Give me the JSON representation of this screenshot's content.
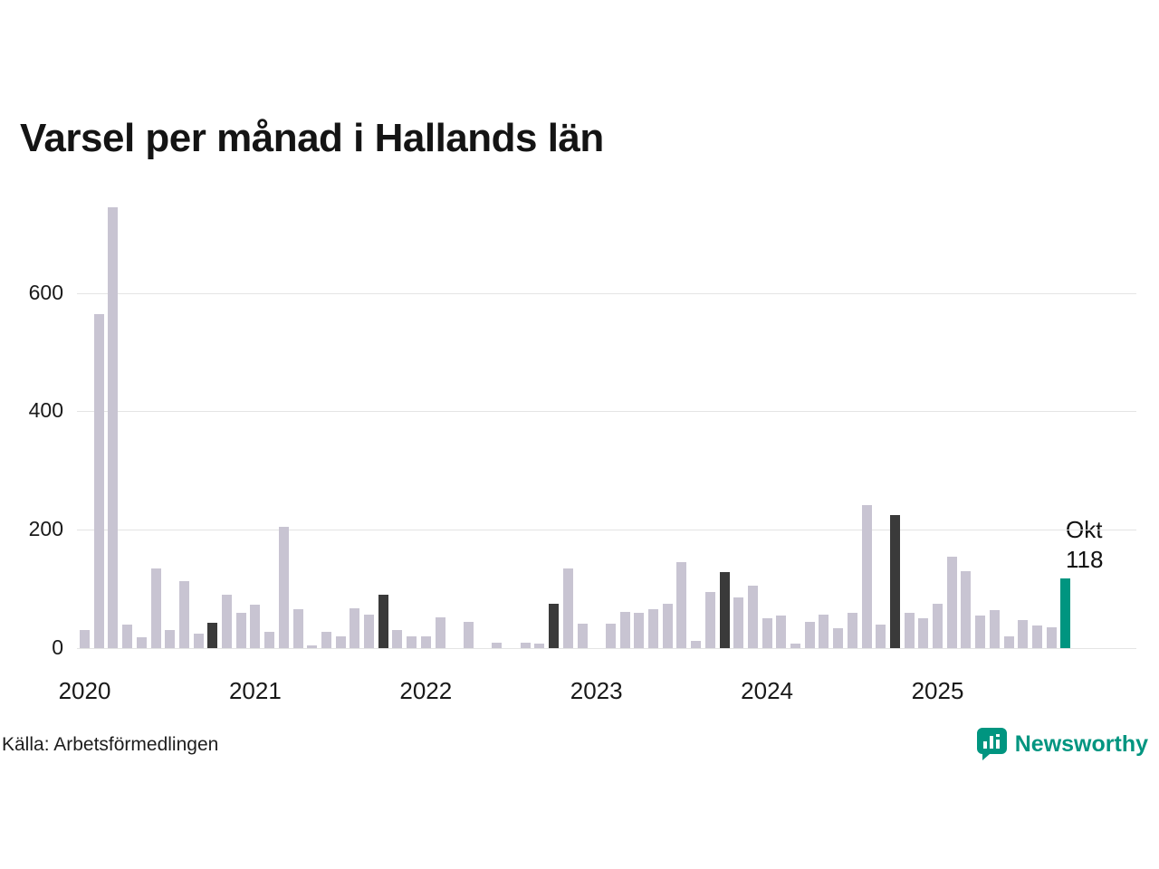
{
  "title": "Varsel per månad i Hallands län",
  "source": "Källa: Arbetsförmedlingen",
  "brand": {
    "name": "Newsworthy"
  },
  "colors": {
    "normal": "#c8c4d2",
    "dark": "#3a3a3a",
    "highlight": "#009580",
    "grid": "#e4e4e4",
    "text": "#191919",
    "brand": "#009580"
  },
  "chart_data": {
    "type": "bar",
    "title": "Varsel per månad i Hallands län",
    "xlabel": "",
    "ylabel": "",
    "ylim": [
      0,
      760
    ],
    "yticks": [
      0,
      200,
      400,
      600
    ],
    "grid": true,
    "year_labels": [
      "2020",
      "2021",
      "2022",
      "2023",
      "2024",
      "2025"
    ],
    "highlight_note": {
      "label": "Okt",
      "value": 118
    },
    "points": [
      {
        "month": "2020-01",
        "value": 30,
        "type": "normal"
      },
      {
        "month": "2020-02",
        "value": 565,
        "type": "normal"
      },
      {
        "month": "2020-03",
        "value": 745,
        "type": "normal"
      },
      {
        "month": "2020-04",
        "value": 40,
        "type": "normal"
      },
      {
        "month": "2020-05",
        "value": 18,
        "type": "normal"
      },
      {
        "month": "2020-06",
        "value": 135,
        "type": "normal"
      },
      {
        "month": "2020-07",
        "value": 30,
        "type": "normal"
      },
      {
        "month": "2020-08",
        "value": 113,
        "type": "normal"
      },
      {
        "month": "2020-09",
        "value": 25,
        "type": "normal"
      },
      {
        "month": "2020-10",
        "value": 43,
        "type": "dark"
      },
      {
        "month": "2020-11",
        "value": 90,
        "type": "normal"
      },
      {
        "month": "2020-12",
        "value": 60,
        "type": "normal"
      },
      {
        "month": "2021-01",
        "value": 73,
        "type": "normal"
      },
      {
        "month": "2021-02",
        "value": 28,
        "type": "normal"
      },
      {
        "month": "2021-03",
        "value": 205,
        "type": "normal"
      },
      {
        "month": "2021-04",
        "value": 66,
        "type": "normal"
      },
      {
        "month": "2021-05",
        "value": 5,
        "type": "normal"
      },
      {
        "month": "2021-06",
        "value": 27,
        "type": "normal"
      },
      {
        "month": "2021-07",
        "value": 20,
        "type": "normal"
      },
      {
        "month": "2021-08",
        "value": 67,
        "type": "normal"
      },
      {
        "month": "2021-09",
        "value": 57,
        "type": "normal"
      },
      {
        "month": "2021-10",
        "value": 90,
        "type": "dark"
      },
      {
        "month": "2021-11",
        "value": 31,
        "type": "normal"
      },
      {
        "month": "2021-12",
        "value": 20,
        "type": "normal"
      },
      {
        "month": "2022-01",
        "value": 20,
        "type": "normal"
      },
      {
        "month": "2022-02",
        "value": 52,
        "type": "normal"
      },
      {
        "month": "2022-03",
        "value": 0,
        "type": "normal"
      },
      {
        "month": "2022-04",
        "value": 44,
        "type": "normal"
      },
      {
        "month": "2022-05",
        "value": 0,
        "type": "normal"
      },
      {
        "month": "2022-06",
        "value": 10,
        "type": "normal"
      },
      {
        "month": "2022-07",
        "value": 0,
        "type": "normal"
      },
      {
        "month": "2022-08",
        "value": 10,
        "type": "normal"
      },
      {
        "month": "2022-09",
        "value": 8,
        "type": "normal"
      },
      {
        "month": "2022-10",
        "value": 75,
        "type": "dark"
      },
      {
        "month": "2022-11",
        "value": 135,
        "type": "normal"
      },
      {
        "month": "2022-12",
        "value": 42,
        "type": "normal"
      },
      {
        "month": "2023-01",
        "value": 0,
        "type": "normal"
      },
      {
        "month": "2023-02",
        "value": 42,
        "type": "normal"
      },
      {
        "month": "2023-03",
        "value": 62,
        "type": "normal"
      },
      {
        "month": "2023-04",
        "value": 60,
        "type": "normal"
      },
      {
        "month": "2023-05",
        "value": 66,
        "type": "normal"
      },
      {
        "month": "2023-06",
        "value": 75,
        "type": "normal"
      },
      {
        "month": "2023-07",
        "value": 145,
        "type": "normal"
      },
      {
        "month": "2023-08",
        "value": 13,
        "type": "normal"
      },
      {
        "month": "2023-09",
        "value": 95,
        "type": "normal"
      },
      {
        "month": "2023-10",
        "value": 128,
        "type": "dark"
      },
      {
        "month": "2023-11",
        "value": 85,
        "type": "normal"
      },
      {
        "month": "2023-12",
        "value": 105,
        "type": "normal"
      },
      {
        "month": "2024-01",
        "value": 50,
        "type": "normal"
      },
      {
        "month": "2024-02",
        "value": 55,
        "type": "normal"
      },
      {
        "month": "2024-03",
        "value": 8,
        "type": "normal"
      },
      {
        "month": "2024-04",
        "value": 45,
        "type": "normal"
      },
      {
        "month": "2024-05",
        "value": 57,
        "type": "normal"
      },
      {
        "month": "2024-06",
        "value": 33,
        "type": "normal"
      },
      {
        "month": "2024-07",
        "value": 60,
        "type": "normal"
      },
      {
        "month": "2024-08",
        "value": 242,
        "type": "normal"
      },
      {
        "month": "2024-09",
        "value": 40,
        "type": "normal"
      },
      {
        "month": "2024-10",
        "value": 225,
        "type": "dark"
      },
      {
        "month": "2024-11",
        "value": 60,
        "type": "normal"
      },
      {
        "month": "2024-12",
        "value": 50,
        "type": "normal"
      },
      {
        "month": "2025-01",
        "value": 75,
        "type": "normal"
      },
      {
        "month": "2025-02",
        "value": 155,
        "type": "normal"
      },
      {
        "month": "2025-03",
        "value": 130,
        "type": "normal"
      },
      {
        "month": "2025-04",
        "value": 55,
        "type": "normal"
      },
      {
        "month": "2025-05",
        "value": 65,
        "type": "normal"
      },
      {
        "month": "2025-06",
        "value": 20,
        "type": "normal"
      },
      {
        "month": "2025-07",
        "value": 48,
        "type": "normal"
      },
      {
        "month": "2025-08",
        "value": 38,
        "type": "normal"
      },
      {
        "month": "2025-09",
        "value": 35,
        "type": "normal"
      },
      {
        "month": "2025-10",
        "value": 118,
        "type": "highlight"
      }
    ]
  }
}
